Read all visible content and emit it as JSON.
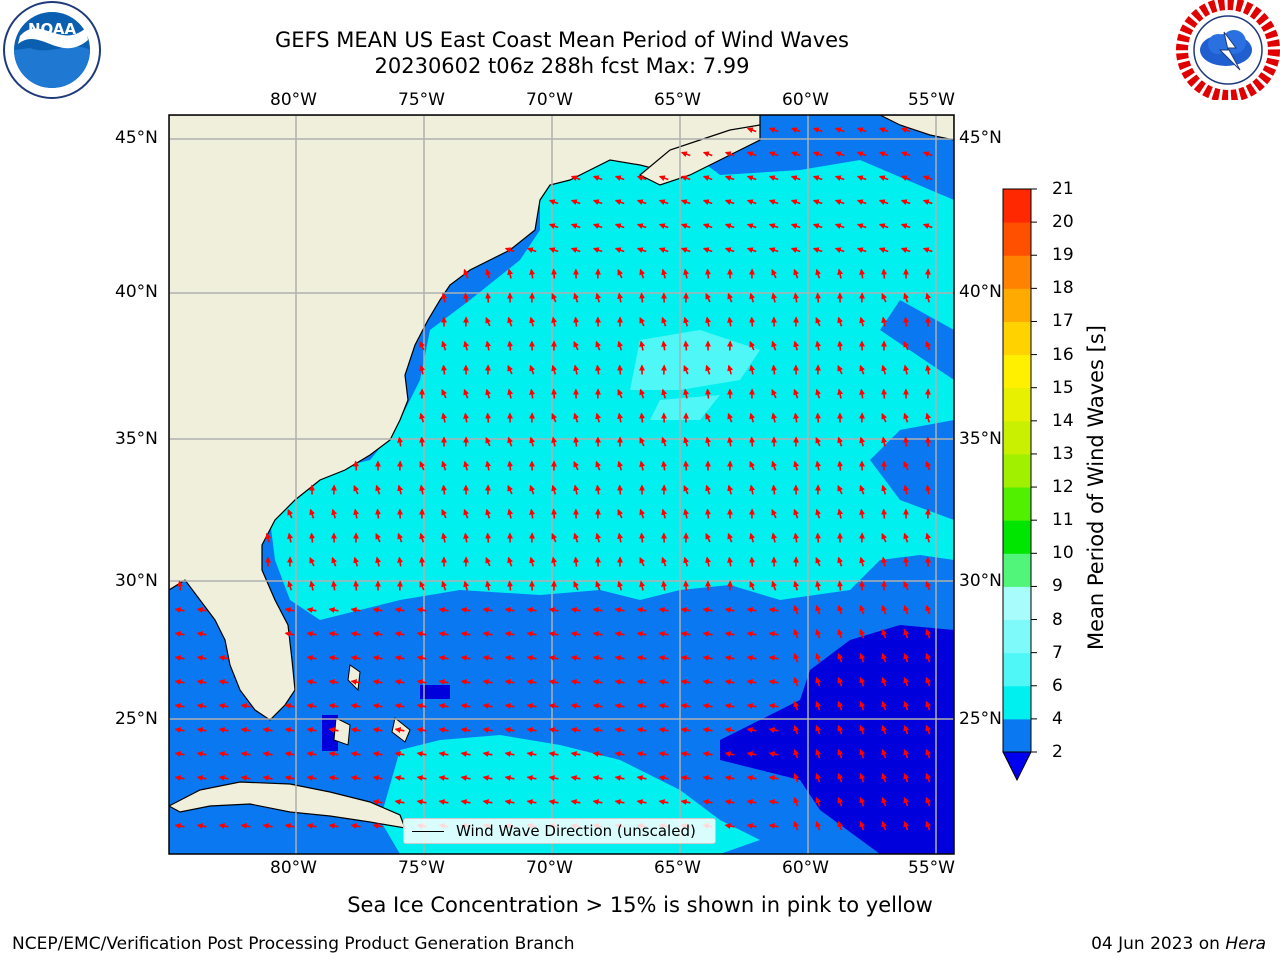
{
  "header": {
    "title_line1": "GEFS MEAN US East Coast Mean Period of Wind Waves",
    "title_line2": "20230602 t06z 288h fcst   Max: 7.99"
  },
  "logos": {
    "noaa_text": "NOAA",
    "noaa_ring": "NATIONAL OCEANIC AND ATMOSPHERIC ADMINISTRATION · U.S. DEPARTMENT OF COMMERCE",
    "nws_ring": "NATIONAL WEATHER SERVICE"
  },
  "map": {
    "lon_range": [
      -85,
      -54.2
    ],
    "lat_range": [
      20.5,
      46
    ],
    "lon_ticks": [
      "80°W",
      "75°W",
      "70°W",
      "65°W",
      "60°W",
      "55°W"
    ],
    "lon_tick_values": [
      -80,
      -75,
      -70,
      -65,
      -60,
      -55
    ],
    "lat_ticks": [
      "45°N",
      "40°N",
      "35°N",
      "30°N",
      "25°N"
    ],
    "lat_tick_values": [
      45,
      40,
      35,
      30,
      25
    ],
    "grid": true,
    "legend_label": "Wind Wave Direction (unscaled)",
    "colors": {
      "land": "#efefdc",
      "ocean_2_4": "#0a78f0",
      "ocean_4_6": "#00f0f0",
      "ocean_6_8": "#50f7f7",
      "ocean_lt2": "#0000dc",
      "arrow": "#ff0000",
      "grid": "#b0b0b0"
    }
  },
  "colorbar": {
    "label": "Mean Period of Wind Waves [s]",
    "ticks": [
      "2",
      "4",
      "6",
      "7",
      "8",
      "9",
      "10",
      "11",
      "12",
      "13",
      "14",
      "15",
      "16",
      "17",
      "18",
      "19",
      "20",
      "21"
    ],
    "under_color": "#0000f0",
    "colors": [
      "#0a78f0",
      "#00f0f0",
      "#50f7f7",
      "#7ffafa",
      "#a8fcfc",
      "#50f57a",
      "#00e600",
      "#50f000",
      "#a0f000",
      "#c8f000",
      "#e6f000",
      "#fff000",
      "#ffd200",
      "#ffaa00",
      "#ff8200",
      "#ff5000",
      "#ff2800"
    ]
  },
  "footer": {
    "note": "Sea Ice Concentration > 15% is shown in pink to yellow",
    "branch": "NCEP/EMC/Verification Post Processing Product Generation Branch",
    "date": "04 Jun 2023 on ",
    "machine": "Hera"
  }
}
